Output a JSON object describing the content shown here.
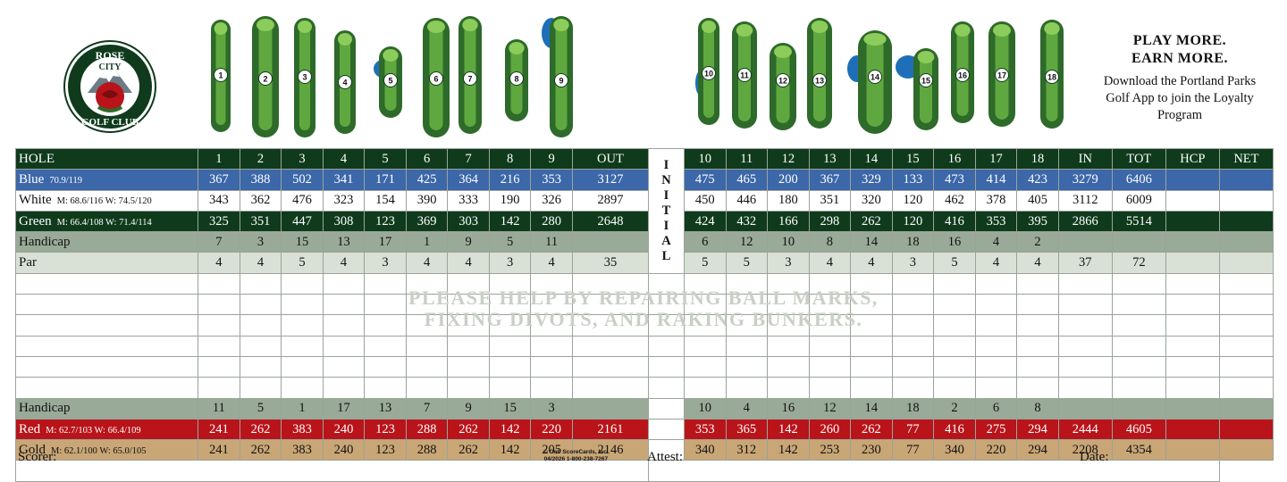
{
  "logo": {
    "line1": "ROSE",
    "line2": "CITY",
    "line3": "GOLF",
    "line4": "CLUB"
  },
  "promo": {
    "line1": "PLAY MORE.",
    "line2": "EARN MORE.",
    "body": "Download the Portland Parks Golf App to join the Loyalty Program"
  },
  "hole_numbers": [
    "1",
    "2",
    "3",
    "4",
    "5",
    "6",
    "7",
    "8",
    "9",
    "10",
    "11",
    "12",
    "13",
    "14",
    "15",
    "16",
    "17",
    "18"
  ],
  "header": {
    "hole": "HOLE",
    "out": "OUT",
    "in": "IN",
    "tot": "TOT",
    "hcp": "HCP",
    "net": "NET"
  },
  "initial_letters": [
    "I",
    "N",
    "I",
    "T",
    "I",
    "A",
    "L"
  ],
  "tees": {
    "blue": {
      "name": "Blue",
      "rating": "70.9/119",
      "front": [
        "367",
        "388",
        "502",
        "341",
        "171",
        "425",
        "364",
        "216",
        "353"
      ],
      "out": "3127",
      "back": [
        "475",
        "465",
        "200",
        "367",
        "329",
        "133",
        "473",
        "414",
        "423"
      ],
      "in": "3279",
      "tot": "6406"
    },
    "white": {
      "name": "White",
      "rating": "M: 68.6/116 W: 74.5/120",
      "front": [
        "343",
        "362",
        "476",
        "323",
        "154",
        "390",
        "333",
        "190",
        "326"
      ],
      "out": "2897",
      "back": [
        "450",
        "446",
        "180",
        "351",
        "320",
        "120",
        "462",
        "378",
        "405"
      ],
      "in": "3112",
      "tot": "6009"
    },
    "green": {
      "name": "Green",
      "rating": "M: 66.4/108 W: 71.4/114",
      "front": [
        "325",
        "351",
        "447",
        "308",
        "123",
        "369",
        "303",
        "142",
        "280"
      ],
      "out": "2648",
      "back": [
        "424",
        "432",
        "166",
        "298",
        "262",
        "120",
        "416",
        "353",
        "395"
      ],
      "in": "2866",
      "tot": "5514"
    },
    "red": {
      "name": "Red",
      "rating": "M: 62.7/103 W: 66.4/109",
      "front": [
        "241",
        "262",
        "383",
        "240",
        "123",
        "288",
        "262",
        "142",
        "220"
      ],
      "out": "2161",
      "back": [
        "353",
        "365",
        "142",
        "260",
        "262",
        "77",
        "416",
        "275",
        "294"
      ],
      "in": "2444",
      "tot": "4605"
    },
    "gold": {
      "name": "Gold",
      "rating": "M: 62.1/100 W: 65.0/105",
      "front": [
        "241",
        "262",
        "383",
        "240",
        "123",
        "288",
        "262",
        "142",
        "205"
      ],
      "out": "2146",
      "back": [
        "340",
        "312",
        "142",
        "253",
        "230",
        "77",
        "340",
        "220",
        "294"
      ],
      "in": "2208",
      "tot": "4354"
    }
  },
  "handicap_men": {
    "label": "Handicap",
    "front": [
      "7",
      "3",
      "15",
      "13",
      "17",
      "1",
      "9",
      "5",
      "11"
    ],
    "back": [
      "6",
      "12",
      "10",
      "8",
      "14",
      "18",
      "16",
      "4",
      "2"
    ]
  },
  "par": {
    "label": "Par",
    "front": [
      "4",
      "4",
      "5",
      "4",
      "3",
      "4",
      "4",
      "3",
      "4"
    ],
    "out": "35",
    "back": [
      "5",
      "5",
      "3",
      "4",
      "4",
      "3",
      "5",
      "4",
      "4"
    ],
    "in": "37",
    "tot": "72"
  },
  "handicap_women": {
    "label": "Handicap",
    "front": [
      "11",
      "5",
      "1",
      "17",
      "13",
      "7",
      "9",
      "15",
      "3"
    ],
    "back": [
      "10",
      "4",
      "16",
      "12",
      "14",
      "18",
      "2",
      "6",
      "8"
    ]
  },
  "watermark": {
    "line1": "PLEASE HELP BY REPAIRING BALL MARKS,",
    "line2": "FIXING DIVOTS, AND RAKING BUNKERS."
  },
  "footer": {
    "scorer": "Scorer:",
    "attest": "Attest:",
    "date": "Date:",
    "copyright1": "© Golf ScoreCards, Inc.",
    "copyright2": "04/2026   1-800-238-7267"
  }
}
